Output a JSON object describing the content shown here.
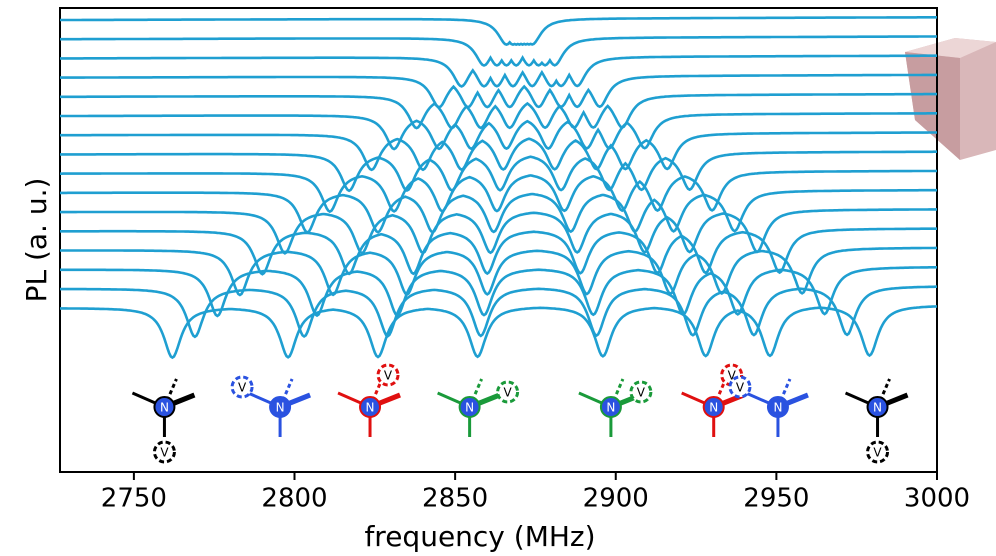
{
  "chart_data": {
    "type": "line",
    "xlabel": "frequency (MHz)",
    "ylabel": "PL (a. u.)",
    "xlim": [
      2727,
      3000
    ],
    "xticks": [
      2750,
      2800,
      2850,
      2900,
      2950,
      3000
    ],
    "color": "#1f9fd1",
    "center_symbol": "N",
    "vacancy_symbol": "V",
    "series": [
      {
        "dips": [
          2762,
          2798,
          2826,
          2857,
          2896,
          2928,
          2948,
          2979
        ]
      },
      {
        "dips": [
          2769,
          2803,
          2829,
          2858,
          2894,
          2924,
          2943,
          2972
        ]
      },
      {
        "dips": [
          2776,
          2807,
          2832,
          2859,
          2893,
          2921,
          2938,
          2965
        ]
      },
      {
        "dips": [
          2783,
          2812,
          2835,
          2860,
          2891,
          2917,
          2933,
          2958
        ]
      },
      {
        "dips": [
          2790,
          2817,
          2837,
          2860,
          2889,
          2913,
          2928,
          2951
        ]
      },
      {
        "dips": [
          2797,
          2821,
          2840,
          2861,
          2888,
          2909,
          2923,
          2944
        ]
      },
      {
        "dips": [
          2804,
          2826,
          2843,
          2862,
          2886,
          2906,
          2918,
          2937
        ]
      },
      {
        "dips": [
          2811,
          2831,
          2846,
          2863,
          2884,
          2902,
          2913,
          2930
        ]
      },
      {
        "dips": [
          2817,
          2835,
          2849,
          2864,
          2883,
          2898,
          2908,
          2923
        ]
      },
      {
        "dips": [
          2824,
          2840,
          2852,
          2865,
          2881,
          2894,
          2903,
          2916
        ]
      },
      {
        "dips": [
          2831,
          2845,
          2855,
          2866,
          2879,
          2891,
          2898,
          2909
        ]
      },
      {
        "dips": [
          2838,
          2849,
          2858,
          2867,
          2878,
          2887,
          2893,
          2902
        ]
      },
      {
        "dips": [
          2845,
          2854,
          2860,
          2867,
          2876,
          2883,
          2888,
          2895
        ]
      },
      {
        "dips": [
          2852,
          2859,
          2863,
          2868,
          2874,
          2880,
          2883,
          2888
        ]
      },
      {
        "dips": [
          2859,
          2863,
          2866,
          2869,
          2873,
          2876,
          2878,
          2881
        ]
      },
      {
        "dips": [
          2866,
          2868,
          2869,
          2870,
          2871,
          2872,
          2873,
          2874
        ]
      }
    ]
  }
}
